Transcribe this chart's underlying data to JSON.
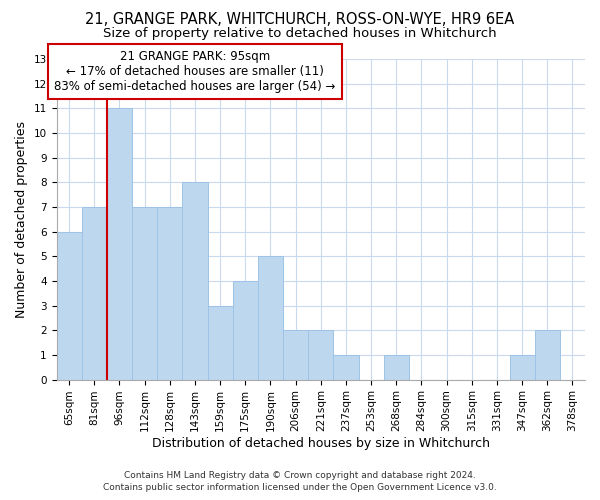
{
  "title1": "21, GRANGE PARK, WHITCHURCH, ROSS-ON-WYE, HR9 6EA",
  "title2": "Size of property relative to detached houses in Whitchurch",
  "xlabel": "Distribution of detached houses by size in Whitchurch",
  "ylabel": "Number of detached properties",
  "categories": [
    "65sqm",
    "81sqm",
    "96sqm",
    "112sqm",
    "128sqm",
    "143sqm",
    "159sqm",
    "175sqm",
    "190sqm",
    "206sqm",
    "221sqm",
    "237sqm",
    "253sqm",
    "268sqm",
    "284sqm",
    "300sqm",
    "315sqm",
    "331sqm",
    "347sqm",
    "362sqm",
    "378sqm"
  ],
  "values": [
    6,
    7,
    11,
    7,
    7,
    8,
    3,
    4,
    5,
    2,
    2,
    1,
    0,
    1,
    0,
    0,
    0,
    0,
    1,
    2,
    0
  ],
  "bar_color": "#BDD7EE",
  "bar_edge_color": "#9DC3E6",
  "red_line_x": 1.5,
  "ylim": [
    0,
    13
  ],
  "yticks": [
    0,
    1,
    2,
    3,
    4,
    5,
    6,
    7,
    8,
    9,
    10,
    11,
    12,
    13
  ],
  "annotation_title": "21 GRANGE PARK: 95sqm",
  "annotation_line1": "← 17% of detached houses are smaller (11)",
  "annotation_line2": "83% of semi-detached houses are larger (54) →",
  "footer1": "Contains HM Land Registry data © Crown copyright and database right 2024.",
  "footer2": "Contains public sector information licensed under the Open Government Licence v3.0.",
  "background_color": "#FFFFFF",
  "grid_color": "#C9D9EE",
  "title_fontsize": 10.5,
  "subtitle_fontsize": 9.5,
  "axis_label_fontsize": 9,
  "tick_fontsize": 7.5,
  "footer_fontsize": 6.5
}
